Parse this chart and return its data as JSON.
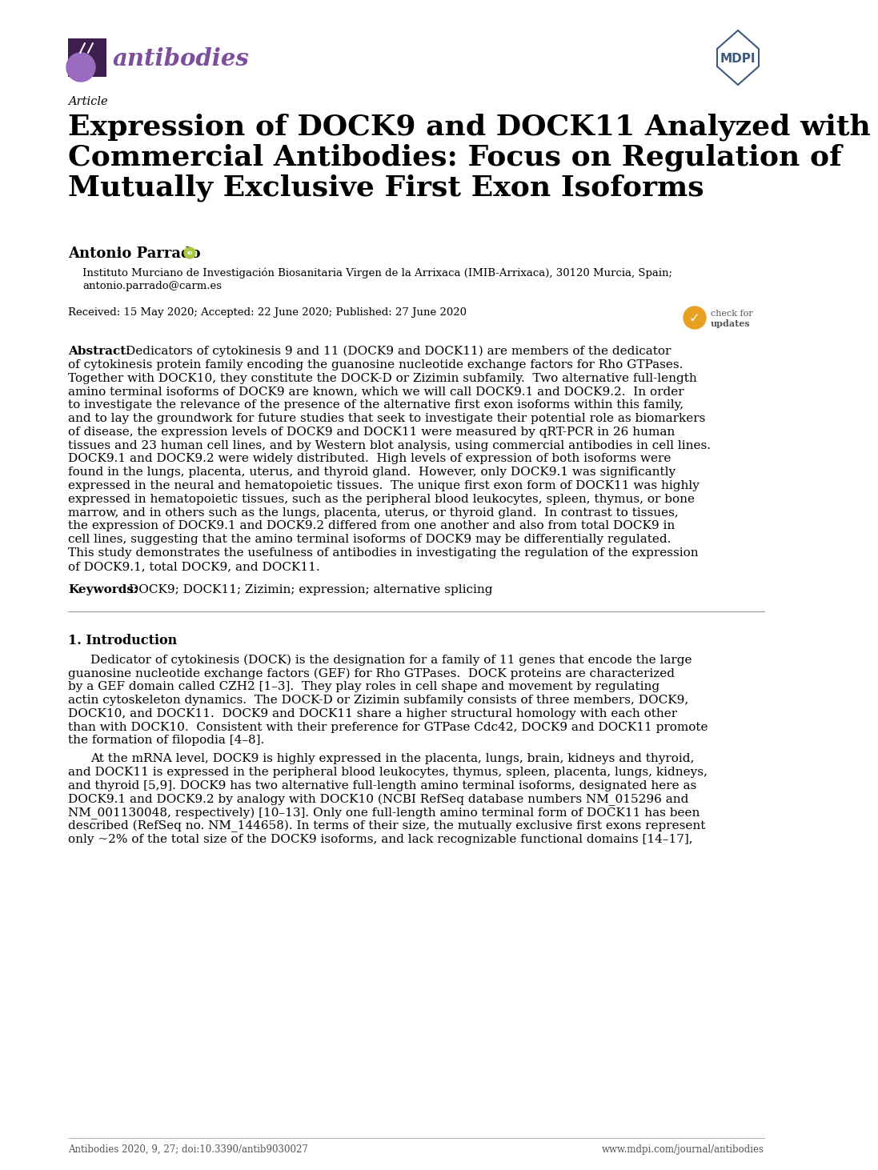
{
  "page_bg": "#ffffff",
  "lm": 0.074,
  "rm": 0.926,
  "journal_name": "antibodies",
  "journal_name_color": "#7b4f9e",
  "mdpi_color": "#3d5980",
  "article_label": "Article",
  "title_line1": "Expression of DOCK9 and DOCK11 Analyzed with",
  "title_line2": "Commercial Antibodies: Focus on Regulation of",
  "title_line3": "Mutually Exclusive First Exon Isoforms",
  "author": "Antonio Parrado",
  "affiliation": "Instituto Murciano de Investigación Biosanitaria Virgen de la Arrixaca (IMIB-Arrixaca), 30120 Murcia, Spain;",
  "affiliation2": "antonio.parrado@carm.es",
  "dates": "Received: 15 May 2020; Accepted: 22 June 2020; Published: 27 June 2020",
  "abstract_label": "Abstract:",
  "abstract_lines": [
    "Dedicators of cytokinesis 9 and 11 (DOCK9 and DOCK11) are members of the dedicator",
    "of cytokinesis protein family encoding the guanosine nucleotide exchange factors for Rho GTPases.",
    "Together with DOCK10, they constitute the DOCK-D or Zizimin subfamily.  Two alternative full-length",
    "amino terminal isoforms of DOCK9 are known, which we will call DOCK9.1 and DOCK9.2.  In order",
    "to investigate the relevance of the presence of the alternative first exon isoforms within this family,",
    "and to lay the groundwork for future studies that seek to investigate their potential role as biomarkers",
    "of disease, the expression levels of DOCK9 and DOCK11 were measured by qRT-PCR in 26 human",
    "tissues and 23 human cell lines, and by Western blot analysis, using commercial antibodies in cell lines.",
    "DOCK9.1 and DOCK9.2 were widely distributed.  High levels of expression of both isoforms were",
    "found in the lungs, placenta, uterus, and thyroid gland.  However, only DOCK9.1 was significantly",
    "expressed in the neural and hematopoietic tissues.  The unique first exon form of DOCK11 was highly",
    "expressed in hematopoietic tissues, such as the peripheral blood leukocytes, spleen, thymus, or bone",
    "marrow, and in others such as the lungs, placenta, uterus, or thyroid gland.  In contrast to tissues,",
    "the expression of DOCK9.1 and DOCK9.2 differed from one another and also from total DOCK9 in",
    "cell lines, suggesting that the amino terminal isoforms of DOCK9 may be differentially regulated.",
    "This study demonstrates the usefulness of antibodies in investigating the regulation of the expression",
    "of DOCK9.1, total DOCK9, and DOCK11."
  ],
  "keywords_label": "Keywords:",
  "keywords_text": "DOCK9; DOCK11; Zizimin; expression; alternative splicing",
  "section1_title": "1. Introduction",
  "intro_p1_lines": [
    "Dedicator of cytokinesis (DOCK) is the designation for a family of 11 genes that encode the large",
    "guanosine nucleotide exchange factors (GEF) for Rho GTPases.  DOCK proteins are characterized",
    "by a GEF domain called CZH2 [1–3].  They play roles in cell shape and movement by regulating",
    "actin cytoskeleton dynamics.  The DOCK-D or Zizimin subfamily consists of three members, DOCK9,",
    "DOCK10, and DOCK11.  DOCK9 and DOCK11 share a higher structural homology with each other",
    "than with DOCK10.  Consistent with their preference for GTPase Cdc42, DOCK9 and DOCK11 promote",
    "the formation of filopodia [4–8]."
  ],
  "intro_p2_lines": [
    "At the mRNA level, DOCK9 is highly expressed in the placenta, lungs, brain, kidneys and thyroid,",
    "and DOCK11 is expressed in the peripheral blood leukocytes, thymus, spleen, placenta, lungs, kidneys,",
    "and thyroid [5,9]. DOCK9 has two alternative full-length amino terminal isoforms, designated here as",
    "DOCK9.1 and DOCK9.2 by analogy with DOCK10 (NCBI RefSeq database numbers NM_015296 and",
    "NM_001130048, respectively) [10–13]. Only one full-length amino terminal form of DOCK11 has been",
    "described (RefSeq no. NM_144658). In terms of their size, the mutually exclusive first exons represent",
    "only ~2% of the total size of the DOCK9 isoforms, and lack recognizable functional domains [14–17],"
  ],
  "footer_left": "Antibodies 2020, 9, 27; doi:10.3390/antib9030027",
  "footer_right": "www.mdpi.com/journal/antibodies",
  "text_color": "#000000"
}
